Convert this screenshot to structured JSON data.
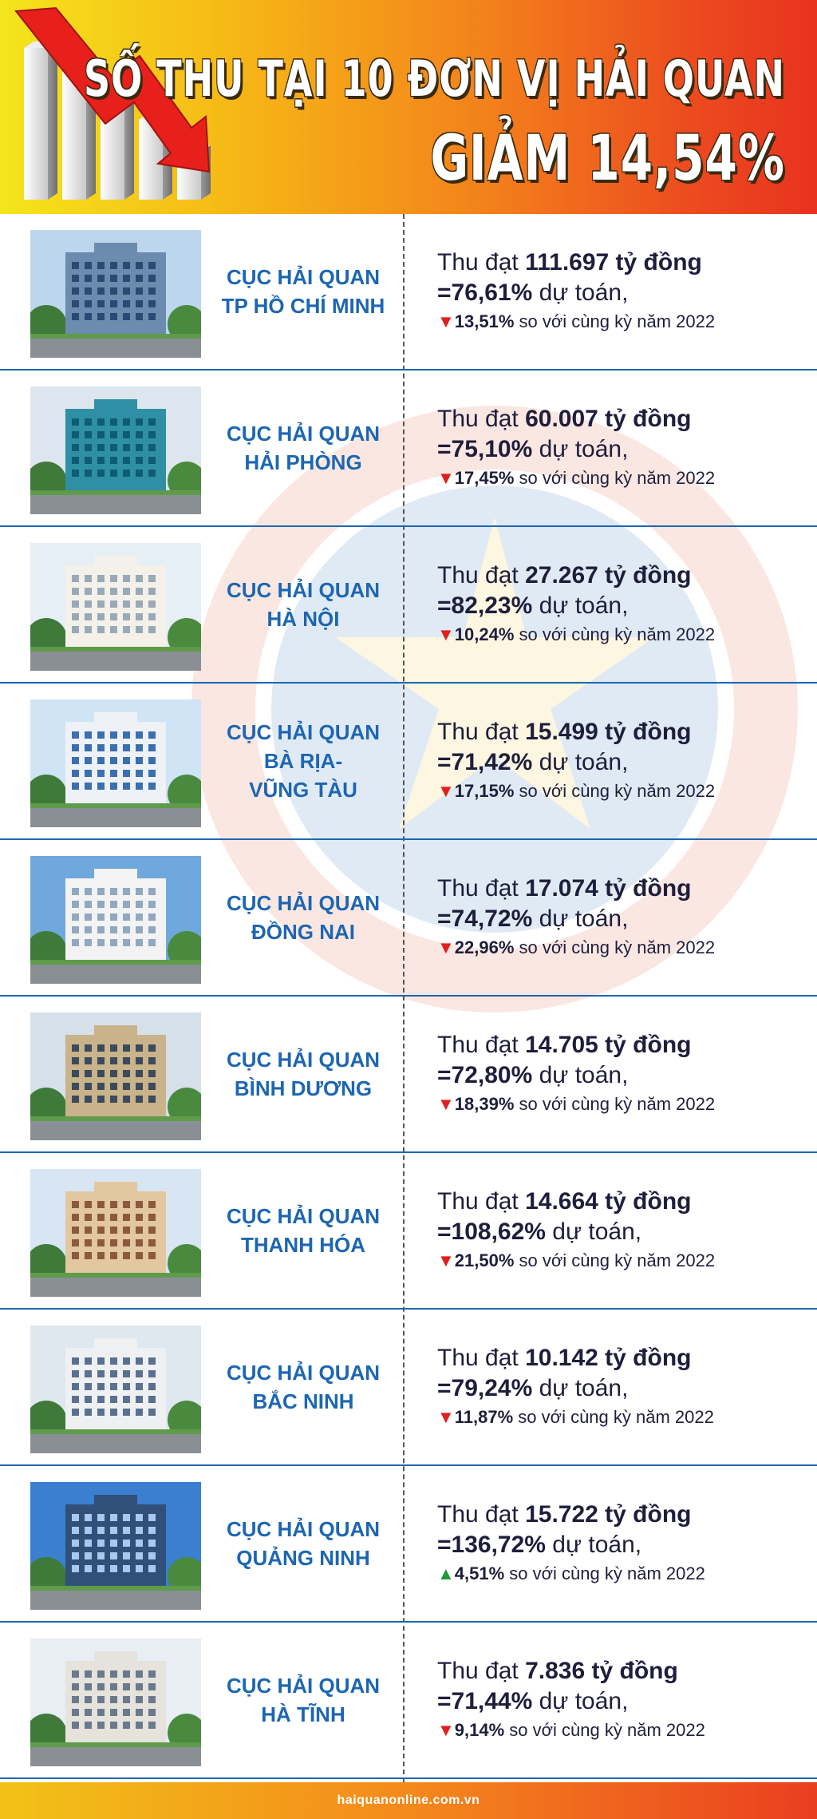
{
  "header": {
    "title_line1": "SỐ THU TẠI 10 ĐƠN VỊ HẢI QUAN",
    "title_line2": "GIẢM 14,54%"
  },
  "units": [
    {
      "name_lines": [
        "CỤC HẢI QUAN",
        "TP HỒ CHÍ MINH"
      ],
      "prefix": "Thu đạt ",
      "amount": "111.697 tỷ đồng",
      "percent_plan": "=76,61%",
      "plan_suffix": " dự toán,",
      "trend": "down",
      "change": "13,51%",
      "compare_text": " so với cùng kỳ năm 2022"
    },
    {
      "name_lines": [
        "CỤC HẢI QUAN",
        "HẢI PHÒNG"
      ],
      "prefix": "Thu đạt ",
      "amount": "60.007 tỷ đồng",
      "percent_plan": "=75,10%",
      "plan_suffix": " dự toán,",
      "trend": "down",
      "change": "17,45%",
      "compare_text": " so với cùng kỳ năm 2022"
    },
    {
      "name_lines": [
        "CỤC HẢI QUAN",
        "HÀ NỘI"
      ],
      "prefix": "Thu đạt ",
      "amount": "27.267 tỷ đồng",
      "percent_plan": "=82,23%",
      "plan_suffix": " dự toán,",
      "trend": "down",
      "change": "10,24%",
      "compare_text": " so với cùng kỳ năm 2022"
    },
    {
      "name_lines": [
        "CỤC HẢI QUAN",
        "BÀ RỊA-",
        "VŨNG TÀU"
      ],
      "prefix": "Thu đạt ",
      "amount": "15.499 tỷ đồng",
      "percent_plan": "=71,42%",
      "plan_suffix": " dự toán,",
      "trend": "down",
      "change": "17,15%",
      "compare_text": " so với cùng kỳ năm 2022"
    },
    {
      "name_lines": [
        "CỤC HẢI QUAN",
        "ĐỒNG NAI"
      ],
      "prefix": "Thu đạt ",
      "amount": "17.074 tỷ đồng",
      "percent_plan": "=74,72%",
      "plan_suffix": " dự toán,",
      "trend": "down",
      "change": "22,96%",
      "compare_text": " so với cùng kỳ năm 2022"
    },
    {
      "name_lines": [
        "CỤC HẢI QUAN",
        "BÌNH DƯƠNG"
      ],
      "prefix": "Thu đạt ",
      "amount": "14.705 tỷ đồng",
      "percent_plan": "=72,80%",
      "plan_suffix": " dự toán,",
      "trend": "down",
      "change": "18,39%",
      "compare_text": " so với cùng kỳ năm 2022"
    },
    {
      "name_lines": [
        "CỤC HẢI QUAN",
        "THANH HÓA"
      ],
      "prefix": "Thu đạt ",
      "amount": "14.664 tỷ đồng",
      "percent_plan": "=108,62%",
      "plan_suffix": " dự toán,",
      "trend": "down",
      "change": "21,50%",
      "compare_text": " so với cùng kỳ năm 2022"
    },
    {
      "name_lines": [
        "CỤC HẢI QUAN",
        "BẮC NINH"
      ],
      "prefix": "Thu đạt ",
      "amount": "10.142 tỷ đồng",
      "percent_plan": "=79,24%",
      "plan_suffix": " dự toán,",
      "trend": "down",
      "change": "11,87%",
      "compare_text": " so với cùng kỳ năm 2022"
    },
    {
      "name_lines": [
        "CỤC HẢI QUAN",
        "QUẢNG NINH"
      ],
      "prefix": "Thu đạt ",
      "amount": "15.722 tỷ đồng",
      "percent_plan": "=136,72%",
      "plan_suffix": " dự toán,",
      "trend": "up",
      "change": "4,51%",
      "compare_text": " so với cùng kỳ năm 2022"
    },
    {
      "name_lines": [
        "CỤC HẢI QUAN",
        "HÀ TĨNH"
      ],
      "prefix": "Thu đạt ",
      "amount": "7.836 tỷ đồng",
      "percent_plan": "=71,44%",
      "plan_suffix": " dự toán,",
      "trend": "down",
      "change": "9,14%",
      "compare_text": " so với cùng kỳ năm 2022"
    }
  ],
  "icons": {
    "down": "red-down-triangle-icon",
    "up": "green-up-triangle-icon"
  },
  "colors": {
    "unit_name": "#1d66b2",
    "down": "#e0201c",
    "up": "#1f9a3a",
    "text": "#1e1e3c"
  },
  "footer": {
    "site": "haiquanonline.com.vn"
  }
}
